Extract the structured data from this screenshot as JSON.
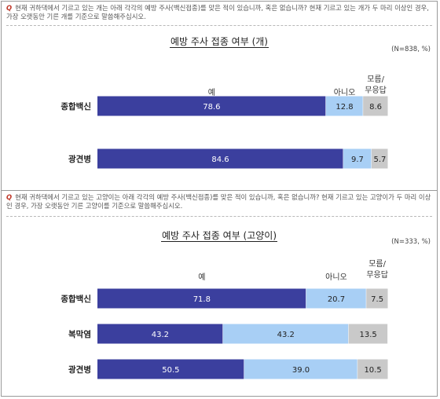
{
  "panels": [
    {
      "question": "현재 귀하댁에서 기르고 있는 개는 아래 각각의 예방 주사(백신접종)를 맞은 적이 있습니까, 혹은 없습니까? 현재 기르고 있는 개가 두 마리 이상인 경우, 가장 오랫동안 기른 개를 기준으로 말씀해주십시오.",
      "question_mark": "Q"
    },
    {
      "question": "현재 귀하댁에서 기르고 있는 고양이는 아래 각각의 예방 주사(백신접종)를 맞은 적이 있습니까, 혹은 없습니까? 현재 기르고 있는 고양이가 두 마리 이상인 경우, 가장 오랫동안 기른 고양이를 기준으로 말씀해주십시오.",
      "question_mark": "Q"
    }
  ],
  "chart_data": [
    {
      "type": "bar",
      "orientation": "horizontal",
      "stacked": true,
      "title": "예방 주사 접종 여부 (개)",
      "note": "(N=838,  %)",
      "categories": [
        "종합백신",
        "광견병"
      ],
      "series": [
        {
          "name": "예",
          "values": [
            78.6,
            84.6
          ],
          "color": "#3b3f9e"
        },
        {
          "name": "아니오",
          "values": [
            12.8,
            9.7
          ],
          "color": "#a8cff5"
        },
        {
          "name": "모름/무응답",
          "values": [
            8.6,
            5.7
          ],
          "color": "#c9c9c9"
        }
      ],
      "xlim": [
        0,
        100
      ],
      "legend": "top"
    },
    {
      "type": "bar",
      "orientation": "horizontal",
      "stacked": true,
      "title": "예방 주사 접종 여부 (고양이)",
      "note": "(N=333,  %)",
      "categories": [
        "종합백신",
        "복막염",
        "광견병"
      ],
      "series": [
        {
          "name": "예",
          "values": [
            71.8,
            43.2,
            50.5
          ],
          "color": "#3b3f9e"
        },
        {
          "name": "아니오",
          "values": [
            20.7,
            43.2,
            39.0
          ],
          "color": "#a8cff5"
        },
        {
          "name": "모름/무응답",
          "values": [
            7.5,
            13.5,
            10.5
          ],
          "color": "#c9c9c9"
        }
      ],
      "xlim": [
        0,
        100
      ],
      "legend": "top"
    }
  ],
  "legend_labels": [
    "예",
    "아니오",
    "모름/",
    "무응답"
  ]
}
